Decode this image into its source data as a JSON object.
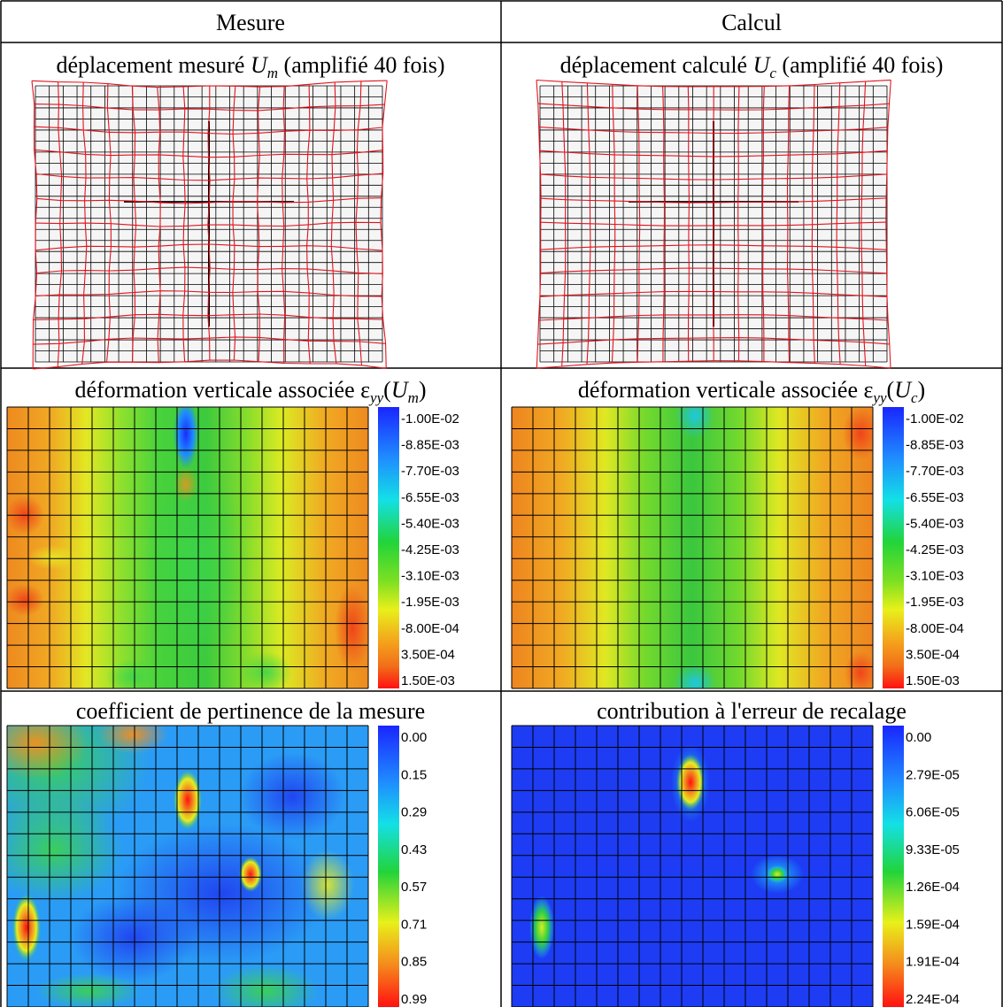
{
  "table": {
    "columns": [
      "Mesure",
      "Calcul"
    ]
  },
  "panels": [
    {
      "caption_text": "déplacement mesuré ",
      "caption_sym": "U",
      "caption_sub": "m",
      "caption_tail": " (amplifié 40 fois)",
      "icon": "deformed-mesh-figure"
    },
    {
      "caption_text": "déplacement calculé ",
      "caption_sym": "U",
      "caption_sub": "c",
      "caption_tail": " (amplifié 40 fois)",
      "icon": "deformed-mesh-figure"
    },
    {
      "caption_text": "déformation verticale associée ",
      "caption_eps": "ε",
      "caption_eps_sub": "yy",
      "caption_arg": "U",
      "caption_arg_sub": "m",
      "legend": [
        "-1.00E-02",
        "-8.85E-03",
        "-7.70E-03",
        "-6.55E-03",
        "-5.40E-03",
        "-4.25E-03",
        "-3.10E-03",
        "-1.95E-03",
        "-8.00E-04",
        "3.50E-04",
        "1.50E-03"
      ],
      "icon": "strain-field-figure"
    },
    {
      "caption_text": "déformation verticale associée ",
      "caption_eps": "ε",
      "caption_eps_sub": "yy",
      "caption_arg": "U",
      "caption_arg_sub": "c",
      "legend": [
        "-1.00E-02",
        "-8.85E-03",
        "-7.70E-03",
        "-6.55E-03",
        "-5.40E-03",
        "-4.25E-03",
        "-3.10E-03",
        "-1.95E-03",
        "-8.00E-04",
        "3.50E-04",
        "1.50E-03"
      ],
      "icon": "strain-field-figure"
    },
    {
      "caption_text": "coefficient de pertinence de la mesure",
      "legend": [
        "0.00",
        "0.15",
        "0.29",
        "0.43",
        "0.57",
        "0.71",
        "0.85",
        "0.99"
      ],
      "icon": "relevance-field-figure"
    },
    {
      "caption_text": "contribution à l'erreur de recalage",
      "legend": [
        "0.00",
        "2.79E-05",
        "6.06E-05",
        "9.33E-05",
        "1.26E-04",
        "1.59E-04",
        "1.91E-04",
        "2.24E-04"
      ],
      "icon": "error-field-figure"
    }
  ],
  "colors": {
    "mesh_undeformed": "#000000",
    "mesh_deformed": "#e0141e",
    "rule": "#000000"
  }
}
